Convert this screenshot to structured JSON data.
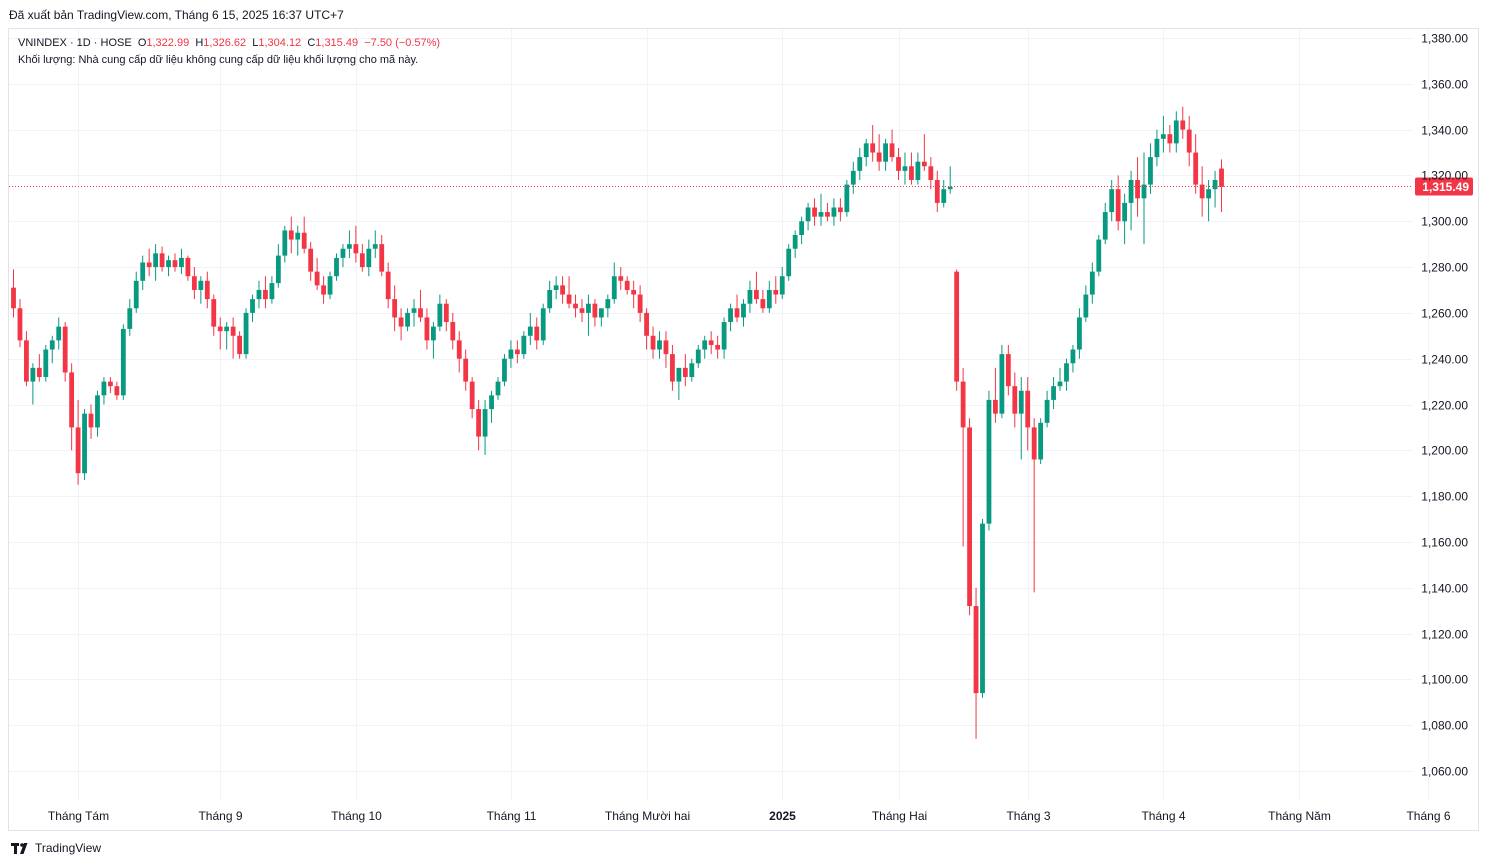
{
  "header": {
    "published": "Đã xuất bản TradingView.com, Tháng 6 15, 2025 16:37 UTC+7"
  },
  "legend": {
    "symbol": "VNINDEX · 1D · HOSE",
    "open_label": "O",
    "open": "1,322.99",
    "high_label": "H",
    "high": "1,326.62",
    "low_label": "L",
    "low": "1,304.12",
    "close_label": "C",
    "close": "1,315.49",
    "change": "−7.50 (−0.57%)",
    "volume_note": "Khối lượng: Nhà cung cấp dữ liệu không cung cấp dữ liệu khối lượng cho mã này."
  },
  "footer": {
    "brand": "TradingView"
  },
  "colors": {
    "up": "#089981",
    "down": "#f23645",
    "grid": "#f0f3fa",
    "price_line": "#f23645"
  },
  "chart_data": {
    "type": "candlestick",
    "symbol": "VNINDEX",
    "interval": "1D",
    "y_range": [
      1050,
      1385
    ],
    "y_ticks": [
      "1,380.00",
      "1,360.00",
      "1,340.00",
      "1,320.00",
      "1,300.00",
      "1,280.00",
      "1,260.00",
      "1,240.00",
      "1,220.00",
      "1,200.00",
      "1,180.00",
      "1,160.00",
      "1,140.00",
      "1,120.00",
      "1,100.00",
      "1,080.00",
      "1,060.00"
    ],
    "last_price": "1,315.49",
    "x_labels": [
      {
        "label": "Tháng Tám",
        "bar": 10
      },
      {
        "label": "Tháng 9",
        "bar": 32
      },
      {
        "label": "Tháng 10",
        "bar": 53
      },
      {
        "label": "Tháng 11",
        "bar": 77
      },
      {
        "label": "Tháng Mười hai",
        "bar": 98
      },
      {
        "label": "2025",
        "bar": 119
      },
      {
        "label": "Tháng Hai",
        "bar": 137
      },
      {
        "label": "Tháng 3",
        "bar": 157
      },
      {
        "label": "Tháng 4",
        "bar": 178
      },
      {
        "label": "Tháng Năm",
        "bar": 199
      },
      {
        "label": "Tháng 6",
        "bar": 219
      }
    ],
    "candles": [
      [
        1271,
        1279,
        1258,
        1262
      ],
      [
        1262,
        1266,
        1245,
        1248
      ],
      [
        1248,
        1252,
        1228,
        1230
      ],
      [
        1230,
        1238,
        1220,
        1236
      ],
      [
        1236,
        1242,
        1230,
        1232
      ],
      [
        1232,
        1246,
        1230,
        1244
      ],
      [
        1244,
        1250,
        1238,
        1248
      ],
      [
        1248,
        1258,
        1244,
        1254
      ],
      [
        1254,
        1256,
        1230,
        1234
      ],
      [
        1234,
        1238,
        1200,
        1210
      ],
      [
        1210,
        1222,
        1185,
        1190
      ],
      [
        1190,
        1218,
        1187,
        1216
      ],
      [
        1216,
        1220,
        1205,
        1210
      ],
      [
        1210,
        1226,
        1206,
        1224
      ],
      [
        1224,
        1232,
        1220,
        1230
      ],
      [
        1230,
        1232,
        1225,
        1228
      ],
      [
        1228,
        1230,
        1222,
        1224
      ],
      [
        1224,
        1255,
        1222,
        1253
      ],
      [
        1253,
        1266,
        1250,
        1262
      ],
      [
        1262,
        1278,
        1260,
        1274
      ],
      [
        1274,
        1285,
        1270,
        1282
      ],
      [
        1282,
        1288,
        1276,
        1280
      ],
      [
        1280,
        1290,
        1274,
        1286
      ],
      [
        1286,
        1289,
        1278,
        1280
      ],
      [
        1280,
        1285,
        1276,
        1283
      ],
      [
        1283,
        1286,
        1278,
        1280
      ],
      [
        1280,
        1288,
        1277,
        1284
      ],
      [
        1284,
        1285,
        1274,
        1276
      ],
      [
        1276,
        1280,
        1266,
        1270
      ],
      [
        1270,
        1276,
        1264,
        1274
      ],
      [
        1274,
        1278,
        1262,
        1266
      ],
      [
        1266,
        1268,
        1250,
        1254
      ],
      [
        1254,
        1258,
        1244,
        1252
      ],
      [
        1252,
        1256,
        1244,
        1254
      ],
      [
        1254,
        1258,
        1240,
        1250
      ],
      [
        1250,
        1252,
        1240,
        1242
      ],
      [
        1242,
        1262,
        1240,
        1260
      ],
      [
        1260,
        1268,
        1256,
        1266
      ],
      [
        1266,
        1274,
        1262,
        1270
      ],
      [
        1270,
        1276,
        1262,
        1266
      ],
      [
        1266,
        1276,
        1264,
        1273
      ],
      [
        1273,
        1290,
        1271,
        1285
      ],
      [
        1285,
        1298,
        1282,
        1296
      ],
      [
        1296,
        1302,
        1286,
        1292
      ],
      [
        1292,
        1298,
        1285,
        1295
      ],
      [
        1295,
        1302,
        1286,
        1288
      ],
      [
        1288,
        1291,
        1274,
        1278
      ],
      [
        1278,
        1284,
        1270,
        1272
      ],
      [
        1272,
        1276,
        1264,
        1268
      ],
      [
        1268,
        1278,
        1266,
        1276
      ],
      [
        1276,
        1286,
        1274,
        1284
      ],
      [
        1284,
        1290,
        1280,
        1288
      ],
      [
        1288,
        1296,
        1284,
        1290
      ],
      [
        1290,
        1298,
        1282,
        1286
      ],
      [
        1286,
        1290,
        1278,
        1280
      ],
      [
        1280,
        1292,
        1276,
        1288
      ],
      [
        1288,
        1296,
        1284,
        1290
      ],
      [
        1290,
        1294,
        1276,
        1278
      ],
      [
        1278,
        1282,
        1262,
        1266
      ],
      [
        1266,
        1272,
        1252,
        1258
      ],
      [
        1258,
        1262,
        1248,
        1254
      ],
      [
        1254,
        1262,
        1252,
        1260
      ],
      [
        1260,
        1266,
        1254,
        1262
      ],
      [
        1262,
        1270,
        1256,
        1258
      ],
      [
        1258,
        1262,
        1244,
        1248
      ],
      [
        1248,
        1256,
        1240,
        1254
      ],
      [
        1254,
        1268,
        1252,
        1264
      ],
      [
        1264,
        1266,
        1252,
        1256
      ],
      [
        1256,
        1260,
        1244,
        1248
      ],
      [
        1248,
        1252,
        1234,
        1240
      ],
      [
        1240,
        1244,
        1226,
        1230
      ],
      [
        1230,
        1232,
        1214,
        1218
      ],
      [
        1218,
        1222,
        1200,
        1206
      ],
      [
        1206,
        1222,
        1198,
        1218
      ],
      [
        1218,
        1226,
        1212,
        1224
      ],
      [
        1224,
        1232,
        1222,
        1230
      ],
      [
        1230,
        1242,
        1228,
        1240
      ],
      [
        1240,
        1248,
        1236,
        1244
      ],
      [
        1244,
        1248,
        1238,
        1242
      ],
      [
        1242,
        1252,
        1240,
        1250
      ],
      [
        1250,
        1260,
        1246,
        1254
      ],
      [
        1254,
        1258,
        1244,
        1248
      ],
      [
        1248,
        1264,
        1246,
        1262
      ],
      [
        1262,
        1274,
        1260,
        1270
      ],
      [
        1270,
        1276,
        1266,
        1272
      ],
      [
        1272,
        1276,
        1264,
        1268
      ],
      [
        1268,
        1276,
        1262,
        1264
      ],
      [
        1264,
        1268,
        1258,
        1262
      ],
      [
        1262,
        1266,
        1256,
        1260
      ],
      [
        1260,
        1268,
        1250,
        1264
      ],
      [
        1264,
        1266,
        1254,
        1258
      ],
      [
        1258,
        1262,
        1254,
        1262
      ],
      [
        1262,
        1268,
        1258,
        1266
      ],
      [
        1266,
        1282,
        1264,
        1276
      ],
      [
        1276,
        1280,
        1270,
        1274
      ],
      [
        1274,
        1276,
        1268,
        1270
      ],
      [
        1270,
        1274,
        1262,
        1268
      ],
      [
        1268,
        1272,
        1256,
        1260
      ],
      [
        1260,
        1262,
        1244,
        1250
      ],
      [
        1250,
        1254,
        1240,
        1244
      ],
      [
        1244,
        1252,
        1240,
        1248
      ],
      [
        1248,
        1252,
        1236,
        1242
      ],
      [
        1242,
        1246,
        1226,
        1230
      ],
      [
        1230,
        1236,
        1222,
        1236
      ],
      [
        1236,
        1242,
        1228,
        1232
      ],
      [
        1232,
        1240,
        1230,
        1238
      ],
      [
        1238,
        1246,
        1236,
        1244
      ],
      [
        1244,
        1250,
        1240,
        1248
      ],
      [
        1248,
        1252,
        1242,
        1246
      ],
      [
        1246,
        1250,
        1240,
        1244
      ],
      [
        1244,
        1258,
        1240,
        1256
      ],
      [
        1256,
        1264,
        1252,
        1262
      ],
      [
        1262,
        1268,
        1256,
        1258
      ],
      [
        1258,
        1266,
        1254,
        1264
      ],
      [
        1264,
        1274,
        1260,
        1270
      ],
      [
        1270,
        1278,
        1264,
        1266
      ],
      [
        1266,
        1270,
        1260,
        1262
      ],
      [
        1262,
        1274,
        1260,
        1270
      ],
      [
        1270,
        1276,
        1264,
        1268
      ],
      [
        1268,
        1280,
        1266,
        1276
      ],
      [
        1276,
        1290,
        1274,
        1288
      ],
      [
        1288,
        1296,
        1284,
        1294
      ],
      [
        1294,
        1302,
        1290,
        1300
      ],
      [
        1300,
        1308,
        1296,
        1306
      ],
      [
        1306,
        1310,
        1298,
        1302
      ],
      [
        1302,
        1312,
        1298,
        1304
      ],
      [
        1304,
        1308,
        1300,
        1302
      ],
      [
        1302,
        1310,
        1298,
        1306
      ],
      [
        1306,
        1310,
        1300,
        1304
      ],
      [
        1304,
        1318,
        1302,
        1316
      ],
      [
        1316,
        1326,
        1312,
        1322
      ],
      [
        1322,
        1332,
        1318,
        1328
      ],
      [
        1328,
        1336,
        1324,
        1334
      ],
      [
        1334,
        1342,
        1326,
        1330
      ],
      [
        1330,
        1338,
        1322,
        1326
      ],
      [
        1326,
        1336,
        1322,
        1334
      ],
      [
        1334,
        1340,
        1326,
        1328
      ],
      [
        1328,
        1332,
        1318,
        1322
      ],
      [
        1322,
        1330,
        1316,
        1324
      ],
      [
        1324,
        1330,
        1316,
        1318
      ],
      [
        1318,
        1330,
        1316,
        1326
      ],
      [
        1326,
        1338,
        1322,
        1324
      ],
      [
        1324,
        1328,
        1314,
        1318
      ],
      [
        1318,
        1322,
        1304,
        1308
      ],
      [
        1308,
        1318,
        1306,
        1314
      ],
      [
        1314,
        1324,
        1312,
        1315
      ],
      [
        1278,
        1279,
        1226,
        1230
      ],
      [
        1230,
        1236,
        1158,
        1210
      ],
      [
        1210,
        1214,
        1128,
        1132
      ],
      [
        1132,
        1140,
        1074,
        1094
      ],
      [
        1094,
        1170,
        1092,
        1168
      ],
      [
        1168,
        1226,
        1165,
        1222
      ],
      [
        1222,
        1236,
        1212,
        1216
      ],
      [
        1216,
        1246,
        1214,
        1242
      ],
      [
        1242,
        1246,
        1224,
        1228
      ],
      [
        1228,
        1234,
        1210,
        1216
      ],
      [
        1216,
        1232,
        1196,
        1226
      ],
      [
        1226,
        1232,
        1200,
        1210
      ],
      [
        1210,
        1214,
        1138,
        1196
      ],
      [
        1196,
        1214,
        1194,
        1212
      ],
      [
        1212,
        1226,
        1210,
        1222
      ],
      [
        1222,
        1232,
        1218,
        1228
      ],
      [
        1228,
        1236,
        1226,
        1230
      ],
      [
        1230,
        1240,
        1226,
        1238
      ],
      [
        1238,
        1246,
        1234,
        1244
      ],
      [
        1244,
        1262,
        1240,
        1258
      ],
      [
        1258,
        1272,
        1256,
        1268
      ],
      [
        1268,
        1282,
        1264,
        1278
      ],
      [
        1278,
        1294,
        1276,
        1292
      ],
      [
        1292,
        1308,
        1290,
        1304
      ],
      [
        1304,
        1318,
        1300,
        1314
      ],
      [
        1314,
        1320,
        1296,
        1300
      ],
      [
        1300,
        1312,
        1290,
        1308
      ],
      [
        1308,
        1322,
        1296,
        1318
      ],
      [
        1318,
        1328,
        1302,
        1310
      ],
      [
        1310,
        1330,
        1290,
        1316
      ],
      [
        1316,
        1334,
        1312,
        1328
      ],
      [
        1328,
        1340,
        1324,
        1336
      ],
      [
        1336,
        1346,
        1330,
        1338
      ],
      [
        1338,
        1342,
        1330,
        1334
      ],
      [
        1334,
        1348,
        1330,
        1344
      ],
      [
        1344,
        1350,
        1336,
        1340
      ],
      [
        1340,
        1346,
        1324,
        1330
      ],
      [
        1330,
        1338,
        1312,
        1316
      ],
      [
        1316,
        1324,
        1302,
        1310
      ],
      [
        1310,
        1318,
        1300,
        1314
      ],
      [
        1314,
        1322,
        1306,
        1318
      ],
      [
        1323,
        1327,
        1304,
        1315
      ]
    ]
  }
}
